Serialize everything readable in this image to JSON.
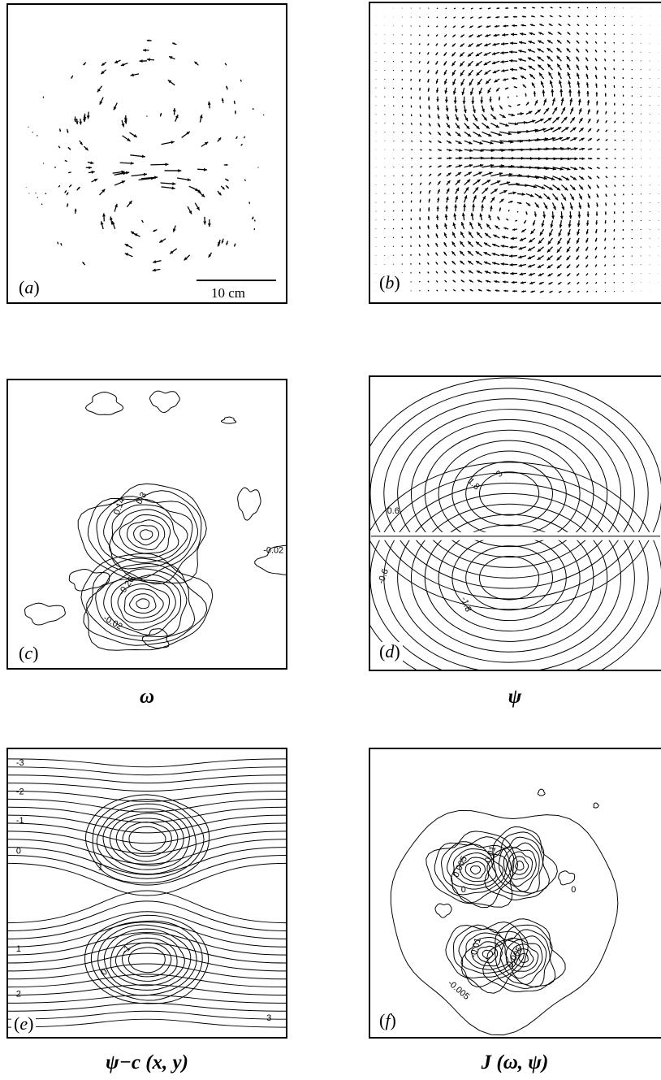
{
  "panels": {
    "a": {
      "label": "a",
      "scale_bar": "10 cm"
    },
    "b": {
      "label": "b"
    },
    "c": {
      "label": "c",
      "caption": "ω",
      "contour_labels": [
        "0.14",
        "0.3",
        "-0.02",
        "-0.02",
        "-0.26"
      ]
    },
    "d": {
      "label": "d",
      "caption": "ψ",
      "contour_labels": [
        "3",
        "1.8",
        "0.6",
        "-1.8",
        "-0.6"
      ]
    },
    "e": {
      "label": "e",
      "caption": "ψ−c (x, y)",
      "contour_labels": [
        "-3",
        "-2",
        "-1",
        "0",
        "1",
        "-1",
        "0",
        "1",
        "2",
        "3"
      ]
    },
    "f": {
      "label": "f",
      "caption": "J (ω, ψ)",
      "contour_labels": [
        "0.005",
        "0.01",
        "0",
        "0",
        "-0.01",
        "-0.005",
        "0.005"
      ]
    }
  },
  "colors": {
    "ink": "#000000",
    "paper": "#ffffff"
  }
}
